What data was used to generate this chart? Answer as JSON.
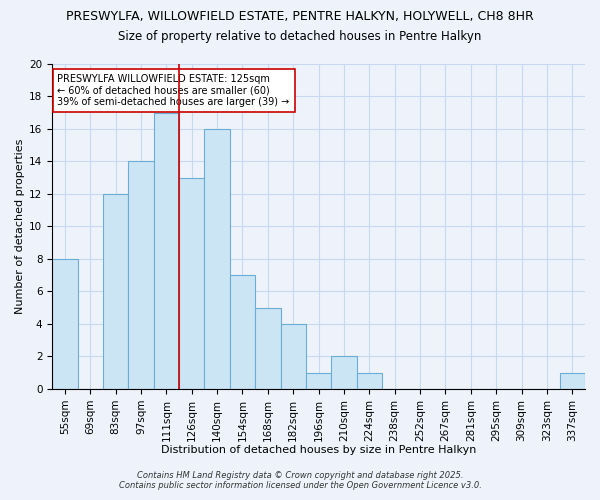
{
  "title_line1": "PRESWYLFA, WILLOWFIELD ESTATE, PENTRE HALKYN, HOLYWELL, CH8 8HR",
  "title_line2": "Size of property relative to detached houses in Pentre Halkyn",
  "xlabel": "Distribution of detached houses by size in Pentre Halkyn",
  "ylabel": "Number of detached properties",
  "categories": [
    "55sqm",
    "69sqm",
    "83sqm",
    "97sqm",
    "111sqm",
    "126sqm",
    "140sqm",
    "154sqm",
    "168sqm",
    "182sqm",
    "196sqm",
    "210sqm",
    "224sqm",
    "238sqm",
    "252sqm",
    "267sqm",
    "281sqm",
    "295sqm",
    "309sqm",
    "323sqm",
    "337sqm"
  ],
  "values": [
    8,
    0,
    12,
    14,
    17,
    13,
    16,
    7,
    5,
    4,
    1,
    2,
    1,
    0,
    0,
    0,
    0,
    0,
    0,
    0,
    1
  ],
  "bar_color": "#cce5f5",
  "bar_edgecolor": "#6aaed6",
  "vline_color": "#cc0000",
  "vline_category": "126sqm",
  "annotation_text": "PRESWYLFA WILLOWFIELD ESTATE: 125sqm\n← 60% of detached houses are smaller (60)\n39% of semi-detached houses are larger (39) →",
  "annotation_box_edgecolor": "#cc0000",
  "annotation_box_facecolor": "#ffffff",
  "ylim": [
    0,
    20
  ],
  "yticks": [
    0,
    2,
    4,
    6,
    8,
    10,
    12,
    14,
    16,
    18,
    20
  ],
  "footnote": "Contains HM Land Registry data © Crown copyright and database right 2025.\nContains public sector information licensed under the Open Government Licence v3.0.",
  "background_color": "#eef3fb",
  "grid_color": "#c8d8f0",
  "title_fontsize": 9,
  "subtitle_fontsize": 8.5,
  "axis_label_fontsize": 8,
  "tick_fontsize": 7.5
}
